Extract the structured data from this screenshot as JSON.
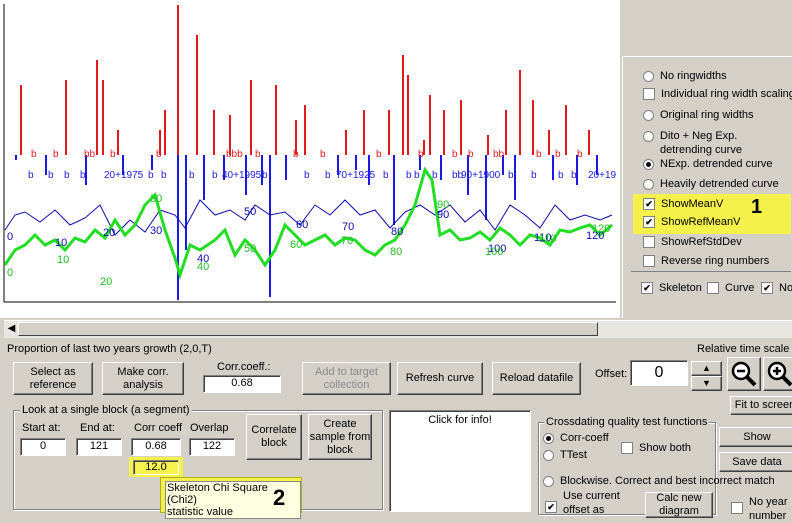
{
  "plot": {
    "red_labels": [
      "b",
      "b",
      "bb",
      "b",
      "b",
      "bbb",
      "b",
      "b",
      "b",
      "b",
      "b",
      "b",
      "b",
      "bb",
      "b",
      "b",
      "b"
    ],
    "blue_labels": [
      {
        "text": "b"
      },
      {
        "text": "b"
      },
      {
        "text": "b"
      },
      {
        "text": "b"
      },
      {
        "text": "20+1975"
      },
      {
        "text": "b"
      },
      {
        "text": "b"
      },
      {
        "text": "b"
      },
      {
        "text": "b"
      },
      {
        "text": "40+1995"
      },
      {
        "text": "b"
      },
      {
        "text": "b"
      },
      {
        "text": "b"
      },
      {
        "text": "70+1925"
      },
      {
        "text": "b"
      },
      {
        "text": "b"
      },
      {
        "text": "b"
      },
      {
        "text": "b"
      },
      {
        "text": "bb"
      },
      {
        "text": "90+1900"
      },
      {
        "text": "b"
      },
      {
        "text": "b"
      },
      {
        "text": "b"
      },
      {
        "text": "b"
      },
      {
        "text": "20+19"
      }
    ],
    "blue_curve_labels": [
      "0",
      "10",
      "20",
      "30",
      "40",
      "50",
      "60",
      "70",
      "80",
      "90",
      "100",
      "110",
      "120"
    ],
    "green_curve_labels": [
      "0",
      "10",
      "20",
      "30",
      "40",
      "50",
      "60",
      "70",
      "80",
      "90",
      "100",
      "110",
      "120"
    ],
    "colors": {
      "red": "#e41a1a",
      "blue": "#1a1ae4",
      "green": "#22dd22",
      "navy": "#0a0ab0"
    }
  },
  "panel": {
    "options": [
      {
        "type": "radio",
        "label": "No ringwidths",
        "checked": false
      },
      {
        "type": "check",
        "label": "Individual ring width scaling",
        "checked": false
      },
      {
        "type": "radio",
        "label": "Original ring widths",
        "checked": false
      },
      {
        "type": "radio",
        "label": "Dito + Neg Exp.",
        "label2": "detrending curve",
        "checked": false
      },
      {
        "type": "radio",
        "label": "NExp. detrended curve",
        "checked": true
      },
      {
        "type": "radio",
        "label": "Heavily detrended curve",
        "checked": false
      },
      {
        "type": "check",
        "label": "ShowMeanV",
        "checked": true
      },
      {
        "type": "check",
        "label": "ShowRefMeanV",
        "checked": true
      },
      {
        "type": "check",
        "label": "ShowRefStdDev",
        "checked": false
      },
      {
        "type": "check",
        "label": "Reverse ring numbers",
        "checked": false
      }
    ],
    "bottom_row": {
      "skeleton": "Skeleton",
      "curve": "Curve",
      "no": "No"
    },
    "badge1": "1"
  },
  "status_text": "Proportion of last two years growth (2,0,T)",
  "relative_time_scale": "Relative time scale T",
  "buttons": {
    "select_ref": "Select as reference",
    "make_corr": "Make corr. analysis",
    "add_target": "Add to target collection",
    "refresh": "Refresh curve",
    "reload": "Reload datafile",
    "fit_screen": "Fit to screen",
    "correlate_block": "Correlate block",
    "create_sample": "Create sample from block",
    "show": "Show",
    "save_data": "Save data",
    "calc_new": "Calc new diagram"
  },
  "corr_coeff": {
    "label": "Corr.coeff.:",
    "value": "0.68"
  },
  "offset": {
    "label": "Offset:",
    "value": "0"
  },
  "block": {
    "title": "Look at a single block (a segment)",
    "start_label": "Start at:",
    "start": "0",
    "end_label": "End at:",
    "end": "121",
    "corr_label": "Corr coeff",
    "corr": "0.68",
    "overlap_label": "Overlap",
    "overlap": "122",
    "chi2": "12.0"
  },
  "info_box": "Click for info!",
  "tooltip": {
    "line1": "Skeleton Chi Square (Chi2)",
    "line2": "statistic value",
    "badge2": "2"
  },
  "quality": {
    "title": "Crossdating quality test functions",
    "corr": "Corr-coeff",
    "ttest": "TTest",
    "show_both": "Show both",
    "blockwise": "Blockwise. Correct and best incorrect match",
    "use_offset": "Use current offset as",
    "no_year": "No year number"
  }
}
